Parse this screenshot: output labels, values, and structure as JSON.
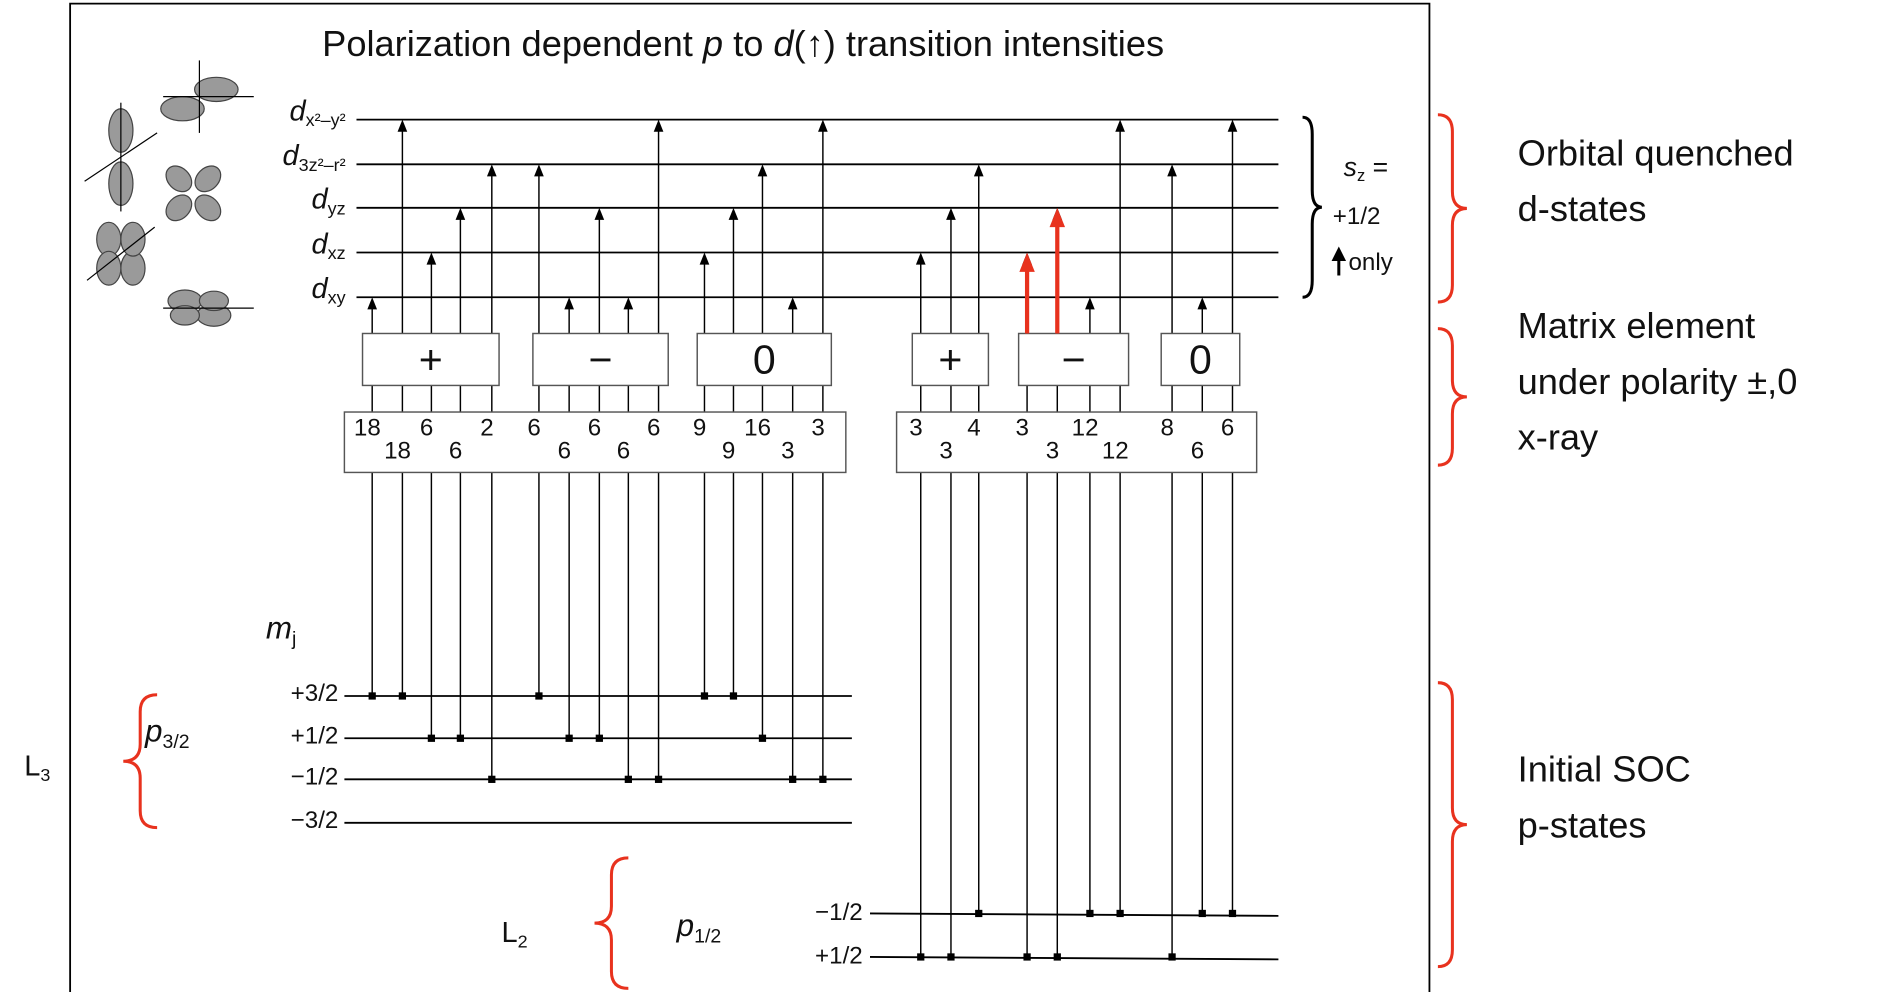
{
  "title": [
    "Polarization dependent ",
    "p",
    " to ",
    "d",
    "(↑) transition intensities"
  ],
  "d_states": [
    {
      "main": "d",
      "sub": "x²–y²"
    },
    {
      "main": "d",
      "sub": "3z²–r²"
    },
    {
      "main": "d",
      "sub": "yz"
    },
    {
      "main": "d",
      "sub": "xz"
    },
    {
      "main": "d",
      "sub": "xy"
    }
  ],
  "sz_label": {
    "main": "s",
    "sub": "z",
    "rest": " ="
  },
  "sz_value": "+1/2",
  "sz_only": "only",
  "left_groups": [
    {
      "sign": "+",
      "values": [
        18,
        18,
        6,
        6,
        2
      ]
    },
    {
      "sign": "−",
      "values": [
        6,
        6,
        6,
        6,
        6
      ]
    },
    {
      "sign": "0",
      "values": [
        9,
        9,
        16,
        3,
        3
      ]
    }
  ],
  "right_groups": [
    {
      "sign": "+",
      "values": [
        3,
        3,
        4
      ]
    },
    {
      "sign": "−",
      "values": [
        3,
        3,
        12,
        12
      ]
    },
    {
      "sign": "0",
      "values": [
        8,
        6,
        6
      ]
    }
  ],
  "mj_label": {
    "main": "m",
    "sub": "j"
  },
  "p32": {
    "main": "p",
    "sub": "3/2"
  },
  "p32_levels": [
    "+3/2",
    "+1/2",
    "−1/2",
    "−3/2"
  ],
  "L3": {
    "main": "L",
    "sub": "3"
  },
  "p12": {
    "main": "p",
    "sub": "1/2"
  },
  "p12_levels": [
    "−1/2",
    "+1/2"
  ],
  "L2": {
    "main": "L",
    "sub": "2"
  },
  "annotations": [
    [
      "Orbital quenched",
      "d-states"
    ],
    [
      "Matrix element",
      "under polarity ±,0",
      "x-ray"
    ],
    [
      "Initial SOC",
      "p-states"
    ]
  ]
}
